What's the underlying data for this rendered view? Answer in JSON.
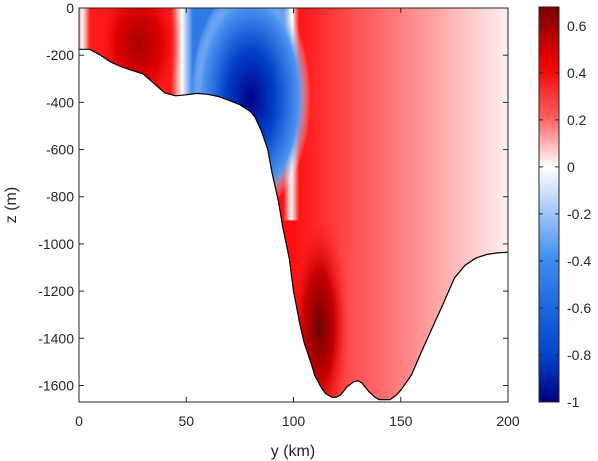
{
  "chart_data": {
    "type": "heatmap",
    "title": "",
    "xlabel": "y (km)",
    "ylabel": "z (m)",
    "xlim": [
      0,
      200
    ],
    "ylim": [
      -1670,
      0
    ],
    "x_ticks": [
      0,
      50,
      100,
      150,
      200
    ],
    "y_ticks": [
      0,
      -200,
      -400,
      -600,
      -800,
      -1000,
      -1200,
      -1400,
      -1600
    ],
    "colorbar": {
      "limits": [
        -1,
        0.68
      ],
      "ticks": [
        0.6,
        0.4,
        0.2,
        0,
        -0.2,
        -0.4,
        -0.6,
        -0.8,
        -1
      ],
      "colormap": [
        "#00007f",
        "#0044cc",
        "#3d8cf0",
        "#ffffff",
        "#ff5050",
        "#f50000",
        "#7a0000"
      ]
    },
    "bathymetry": {
      "y_km": [
        0,
        5,
        10,
        15,
        20,
        30,
        35,
        40,
        45,
        50,
        55,
        60,
        65,
        70,
        75,
        80,
        82,
        85,
        88,
        90,
        93,
        95,
        98,
        100,
        103,
        105,
        108,
        110,
        113,
        115,
        118,
        120,
        122,
        125,
        128,
        130,
        132,
        135,
        138,
        140,
        145,
        148,
        150,
        155,
        160,
        165,
        170,
        175,
        180,
        185,
        190,
        195,
        200
      ],
      "z_m": [
        -175,
        -175,
        -200,
        -230,
        -250,
        -280,
        -320,
        -360,
        -372,
        -368,
        -362,
        -366,
        -375,
        -392,
        -410,
        -440,
        -462,
        -520,
        -600,
        -700,
        -820,
        -930,
        -1060,
        -1200,
        -1340,
        -1420,
        -1500,
        -1560,
        -1610,
        -1635,
        -1650,
        -1650,
        -1640,
        -1605,
        -1585,
        -1580,
        -1590,
        -1625,
        -1650,
        -1660,
        -1660,
        -1640,
        -1620,
        -1555,
        -1450,
        -1350,
        -1250,
        -1145,
        -1090,
        -1060,
        -1045,
        -1038,
        -1035
      ]
    },
    "field_features": [
      {
        "name": "nearshore-positive-core",
        "y_km": 28,
        "z_m": -150,
        "value": 0.55
      },
      {
        "name": "negative-core",
        "y_km": 80,
        "z_m": -380,
        "value": -1.0
      },
      {
        "name": "slope-positive-core",
        "y_km": 112,
        "z_m": -1350,
        "value": 0.68
      },
      {
        "name": "offshore-decay",
        "y_km": 200,
        "z_m": -600,
        "value": 0.05
      }
    ]
  }
}
